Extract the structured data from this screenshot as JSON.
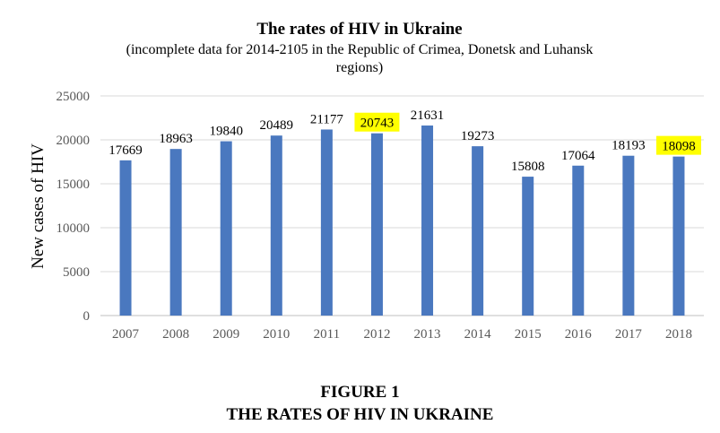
{
  "chart_data": {
    "type": "bar",
    "title": "The rates of HIV in Ukraine",
    "subtitle_lines": [
      "(incomplete data for 2014-2105 in the Republic of Crimea, Donetsk and Luhansk",
      "regions)"
    ],
    "ylabel": "New cases of HIV",
    "xlabel": "",
    "ylim": [
      0,
      25000
    ],
    "yticks": [
      "0",
      "5000",
      "10000",
      "15000",
      "20000",
      "25000"
    ],
    "grid": true,
    "legend": "none",
    "bar_color": "#4a78bf",
    "highlight_color": "#ffff00",
    "categories": [
      "2007",
      "2008",
      "2009",
      "2010",
      "2011",
      "2012",
      "2013",
      "2014",
      "2015",
      "2016",
      "2017",
      "2018"
    ],
    "values": [
      17669,
      18963,
      19840,
      20489,
      21177,
      20743,
      21631,
      19273,
      15808,
      17064,
      18193,
      18098
    ],
    "highlighted_labels": [
      "2012",
      "2018"
    ]
  },
  "figure_caption": {
    "line1": "FIGURE 1",
    "line2": "THE RATES OF HIV IN UKRAINE"
  }
}
